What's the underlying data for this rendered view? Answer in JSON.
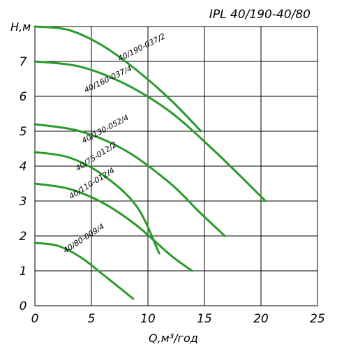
{
  "chart_data": {
    "type": "line",
    "title": "IPL 40/190-40/80",
    "xlabel": "Q,м³/год",
    "ylabel": "H,м",
    "xlim": [
      0,
      25
    ],
    "ylim": [
      0,
      8
    ],
    "x_ticks": [
      "0",
      "5",
      "10",
      "15",
      "20",
      "25"
    ],
    "y_ticks": [
      "0",
      "1",
      "2",
      "3",
      "4",
      "5",
      "6",
      "7"
    ],
    "grid": true,
    "series": [
      {
        "name": "40/190-037/2",
        "x": [
          0,
          3,
          6,
          9,
          12,
          14.7
        ],
        "y": [
          8.0,
          7.9,
          7.45,
          6.75,
          5.9,
          5.0
        ],
        "label_pos": [
          7.5,
          7.0
        ],
        "label_angle": -27
      },
      {
        "name": "40/160-037/4",
        "x": [
          0,
          4,
          8,
          12,
          16,
          20.4
        ],
        "y": [
          7.0,
          6.85,
          6.35,
          5.55,
          4.4,
          3.0
        ],
        "label_pos": [
          4.5,
          6.1
        ],
        "label_angle": -26
      },
      {
        "name": "40/130-052/4",
        "x": [
          0,
          4,
          8,
          12,
          14.5,
          16.8
        ],
        "y": [
          5.2,
          5.0,
          4.45,
          3.5,
          2.7,
          2.0
        ],
        "label_pos": [
          4.3,
          4.65
        ],
        "label_angle": -28
      },
      {
        "name": "40/75-012/2",
        "x": [
          0,
          3,
          6,
          9,
          11.0
        ],
        "y": [
          4.4,
          4.25,
          3.75,
          2.85,
          1.5
        ],
        "label_pos": [
          3.8,
          3.85
        ],
        "label_angle": -33
      },
      {
        "name": "40/110-012/4",
        "x": [
          0,
          3,
          6,
          9,
          12,
          13.9
        ],
        "y": [
          3.5,
          3.35,
          2.95,
          2.3,
          1.45,
          1.0
        ],
        "label_pos": [
          3.2,
          3.05
        ],
        "label_angle": -32
      },
      {
        "name": "40/80-009/4",
        "x": [
          0,
          2,
          4,
          6,
          8.7
        ],
        "y": [
          1.8,
          1.72,
          1.4,
          0.9,
          0.2
        ],
        "label_pos": [
          2.7,
          1.5
        ],
        "label_angle": -33
      }
    ]
  },
  "colors": {
    "curve": "#2a9a2a",
    "grid": "#000000"
  }
}
